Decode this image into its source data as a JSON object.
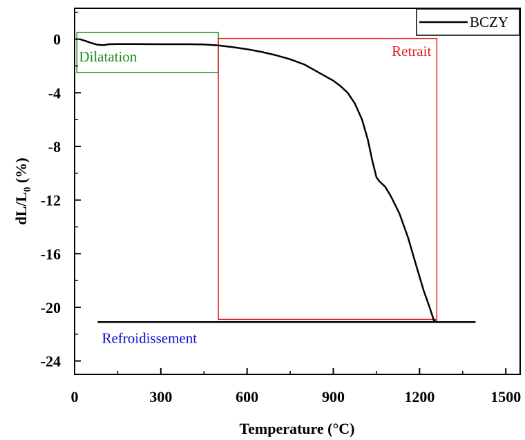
{
  "chart_data": {
    "type": "line",
    "xlabel": "Temperature (°C)",
    "ylabel": {
      "main": "dL/L",
      "sub": "0",
      "unit": " (%)"
    },
    "xlim": [
      0,
      1550
    ],
    "ylim": [
      -25,
      2.3
    ],
    "x_ticks": [
      0,
      300,
      600,
      900,
      1200,
      1500
    ],
    "y_ticks": [
      0,
      -4,
      -8,
      -12,
      -16,
      -20,
      -24
    ],
    "grid": false,
    "legend_position": "top-right",
    "series": [
      {
        "name": "BCZY",
        "color": "#000000",
        "points": [
          [
            18,
            0
          ],
          [
            40,
            -0.15
          ],
          [
            60,
            -0.3
          ],
          [
            80,
            -0.42
          ],
          [
            100,
            -0.45
          ],
          [
            120,
            -0.38
          ],
          [
            150,
            -0.37
          ],
          [
            200,
            -0.37
          ],
          [
            300,
            -0.38
          ],
          [
            400,
            -0.38
          ],
          [
            450,
            -0.4
          ],
          [
            500,
            -0.47
          ],
          [
            550,
            -0.6
          ],
          [
            600,
            -0.75
          ],
          [
            650,
            -0.95
          ],
          [
            700,
            -1.2
          ],
          [
            750,
            -1.5
          ],
          [
            800,
            -1.9
          ],
          [
            850,
            -2.5
          ],
          [
            900,
            -3.1
          ],
          [
            925,
            -3.5
          ],
          [
            950,
            -4.0
          ],
          [
            975,
            -4.8
          ],
          [
            1000,
            -6.0
          ],
          [
            1020,
            -7.5
          ],
          [
            1035,
            -9.0
          ],
          [
            1050,
            -10.3
          ],
          [
            1060,
            -10.6
          ],
          [
            1080,
            -11.0
          ],
          [
            1100,
            -11.7
          ],
          [
            1130,
            -13.0
          ],
          [
            1160,
            -14.8
          ],
          [
            1190,
            -17.0
          ],
          [
            1215,
            -18.8
          ],
          [
            1235,
            -20.0
          ],
          [
            1250,
            -21.0
          ],
          [
            1265,
            -21.1
          ],
          [
            1395,
            -21.1
          ]
        ],
        "cooling_line": [
          [
            80,
            -21.1
          ],
          [
            1265,
            -21.1
          ]
        ]
      }
    ],
    "annotations": [
      {
        "label": "Dilatation",
        "color": "#1e8c1e",
        "x_range": [
          8,
          500
        ],
        "y_range": [
          -2.5,
          0.5
        ]
      },
      {
        "label": "Retrait",
        "color": "#e02020",
        "x_range": [
          500,
          1260
        ],
        "y_range": [
          -20.9,
          0.05
        ]
      },
      {
        "label": "Refroidissement",
        "color": "#1010c8",
        "x": 90,
        "y": -22.3
      }
    ]
  }
}
